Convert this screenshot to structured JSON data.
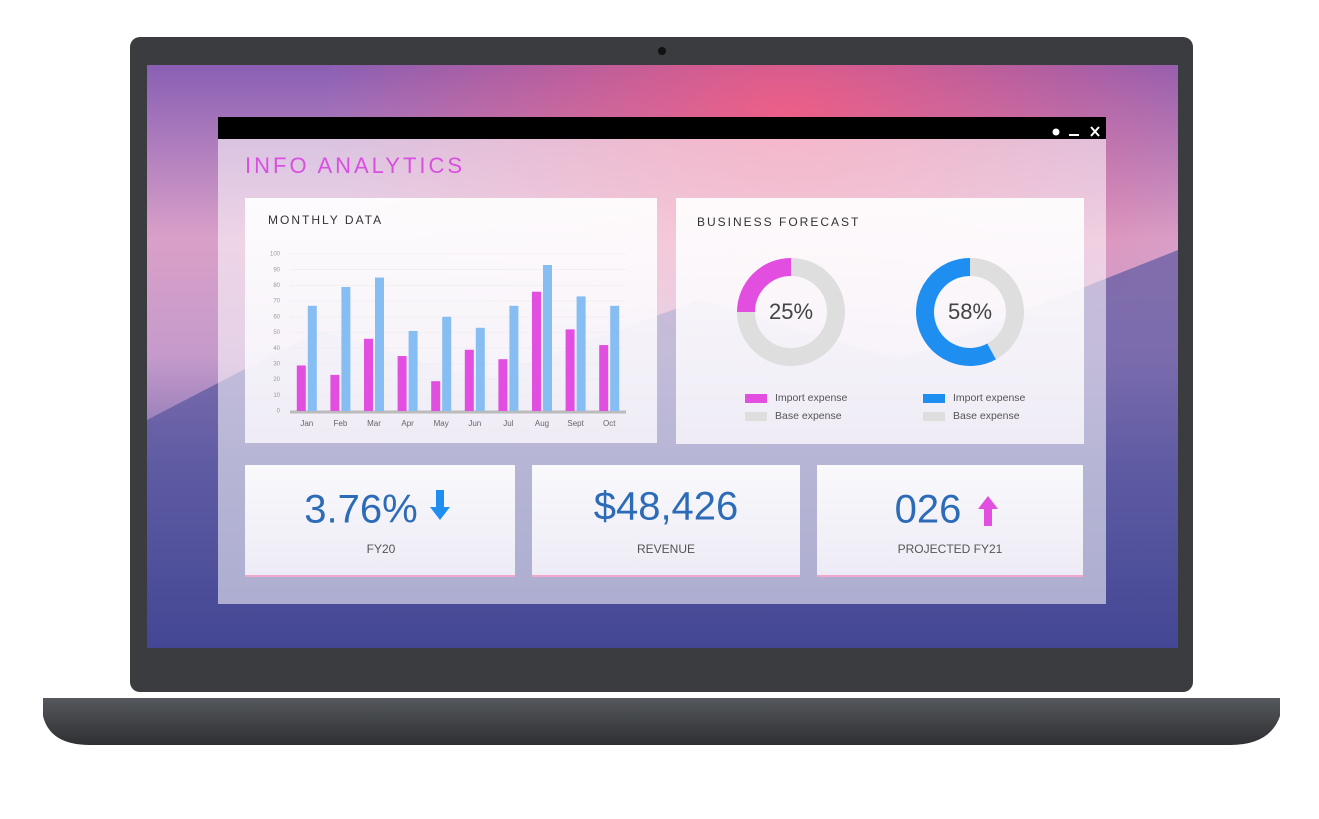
{
  "window": {
    "title": "INFO ANALYTICS"
  },
  "chart_data": [
    {
      "type": "bar",
      "title": "MONTHLY DATA",
      "categories": [
        "Jan",
        "Feb",
        "Mar",
        "Apr",
        "May",
        "Jun",
        "Jul",
        "Aug",
        "Sept",
        "Oct"
      ],
      "series": [
        {
          "color": "#e24fe0",
          "values": [
            29,
            23,
            46,
            35,
            19,
            39,
            33,
            76,
            52,
            42
          ]
        },
        {
          "color": "#86bdf2",
          "values": [
            67,
            79,
            85,
            51,
            60,
            53,
            67,
            93,
            73,
            67
          ]
        }
      ],
      "ylim": [
        0,
        100
      ],
      "yticks": [
        0,
        10,
        20,
        30,
        40,
        50,
        60,
        70,
        80,
        90,
        100
      ],
      "grid": true
    },
    {
      "type": "pie",
      "title": "BUSINESS FORECAST",
      "donut": true,
      "categories": [
        "Import expense",
        "Base expense"
      ],
      "values": [
        25,
        75
      ],
      "colors": [
        "#e24fe0",
        "#dedede"
      ],
      "center_label": "25%"
    },
    {
      "type": "pie",
      "donut": true,
      "categories": [
        "Import expense",
        "Base expense"
      ],
      "values": [
        58,
        42
      ],
      "colors": [
        "#1e8ef0",
        "#dedede"
      ],
      "center_label": "58%"
    }
  ],
  "kpis": [
    {
      "value": "3.76%",
      "label": "FY20"
    },
    {
      "value": "$48,426",
      "label": "REVENUE"
    },
    {
      "value": "026",
      "label": "PROJECTED FY21"
    }
  ]
}
